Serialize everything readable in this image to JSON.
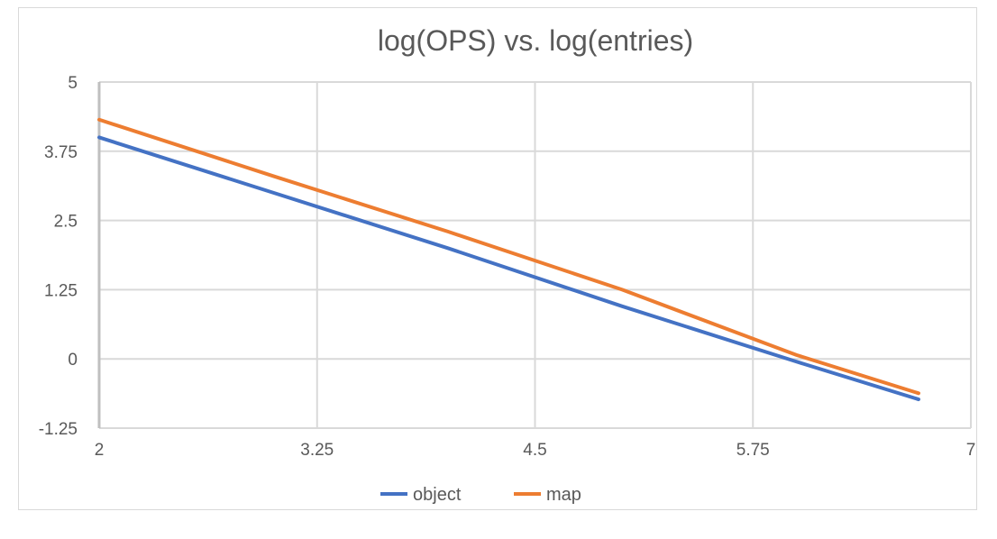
{
  "chart_data": {
    "type": "line",
    "title": "log(OPS) vs. log(entries)",
    "xlabel": "",
    "ylabel": "",
    "xlim": [
      2,
      7
    ],
    "ylim": [
      -1.25,
      5
    ],
    "xticks": [
      "2",
      "3.25",
      "4.5",
      "5.75",
      "7"
    ],
    "yticks": [
      "5",
      "3.75",
      "2.5",
      "1.25",
      "0",
      "-1.25"
    ],
    "grid": true,
    "legend_position": "bottom",
    "x": [
      2,
      3,
      4,
      5,
      6,
      6.7
    ],
    "series": [
      {
        "name": "object",
        "color": "#4472C4",
        "values": [
          4.0,
          3.0,
          2.0,
          0.95,
          -0.05,
          -0.73
        ]
      },
      {
        "name": "map",
        "color": "#ED7D31",
        "values": [
          4.32,
          3.3,
          2.3,
          1.25,
          0.07,
          -0.62
        ]
      }
    ]
  }
}
